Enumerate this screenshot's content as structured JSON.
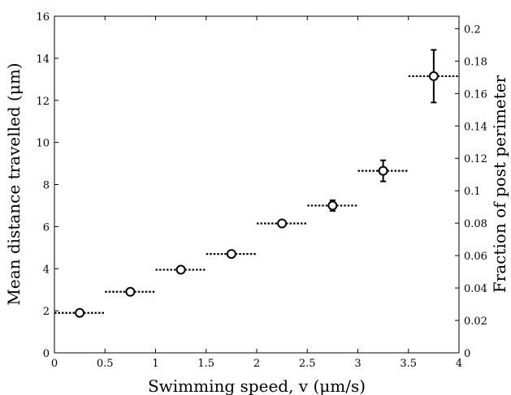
{
  "chart_data": {
    "type": "scatter",
    "xlabel": "Swimming speed, v (μm/s)",
    "ylabel": "Mean distance travelled (μm)",
    "y2label": "Fraction of post perimeter",
    "xlim": [
      0,
      4
    ],
    "ylim": [
      0,
      16
    ],
    "y2lim": [
      0,
      0.2077
    ],
    "xticks": [
      "0",
      "0.5",
      "1",
      "1.5",
      "2",
      "2.5",
      "3",
      "3.5",
      "4"
    ],
    "yticks": [
      "0",
      "2",
      "4",
      "6",
      "8",
      "10",
      "12",
      "14",
      "16"
    ],
    "y2ticks": [
      "0",
      "0.02",
      "0.04",
      "0.06",
      "0.08",
      "0.1",
      "0.12",
      "0.14",
      "0.16",
      "0.18",
      "0.2"
    ],
    "grid": false,
    "legend": "none",
    "points": [
      {
        "x": 0.25,
        "y": 1.9,
        "xerr": [
          0.0,
          0.5
        ],
        "yerr": 0.05
      },
      {
        "x": 0.75,
        "y": 2.9,
        "xerr": [
          0.5,
          1.0
        ],
        "yerr": 0.08
      },
      {
        "x": 1.25,
        "y": 3.95,
        "xerr": [
          1.0,
          1.5
        ],
        "yerr": 0.08
      },
      {
        "x": 1.75,
        "y": 4.7,
        "xerr": [
          1.5,
          2.0
        ],
        "yerr": 0.1
      },
      {
        "x": 2.25,
        "y": 6.15,
        "xerr": [
          2.0,
          2.5
        ],
        "yerr": 0.15
      },
      {
        "x": 2.75,
        "y": 7.0,
        "xerr": [
          2.5,
          3.0
        ],
        "yerr": 0.25
      },
      {
        "x": 3.25,
        "y": 8.65,
        "xerr": [
          3.0,
          3.5
        ],
        "yerr": 0.5
      },
      {
        "x": 3.75,
        "y": 13.15,
        "xerr": [
          3.5,
          4.0
        ],
        "yerr": 1.25
      }
    ]
  }
}
